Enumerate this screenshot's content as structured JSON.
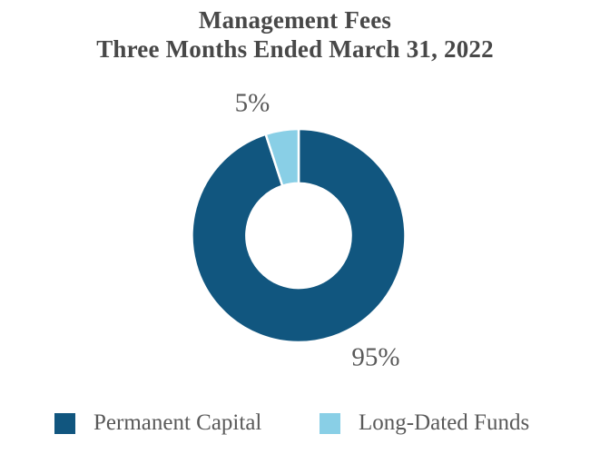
{
  "chart": {
    "title_line1": "Management Fees",
    "title_line2": "Three Months Ended March 31, 2022"
  },
  "chart_data": {
    "type": "pie",
    "subtype": "donut",
    "title": "Management Fees Three Months Ended March 31, 2022",
    "categories": [
      "Permanent Capital",
      "Long-Dated Funds"
    ],
    "values": [
      95,
      5
    ],
    "unit": "percent",
    "data_labels": [
      "95%",
      "5%"
    ],
    "colors": [
      "#11567F",
      "#89CFE6"
    ],
    "separator_color": "#FFFFFF",
    "start_angle_deg": 0,
    "direction": "clockwise",
    "hole_ratio": 0.49,
    "legend_position": "bottom"
  },
  "legend": {
    "items": [
      {
        "label": "Permanent Capital",
        "color": "#11567F"
      },
      {
        "label": "Long-Dated Funds",
        "color": "#89CFE6"
      }
    ]
  }
}
